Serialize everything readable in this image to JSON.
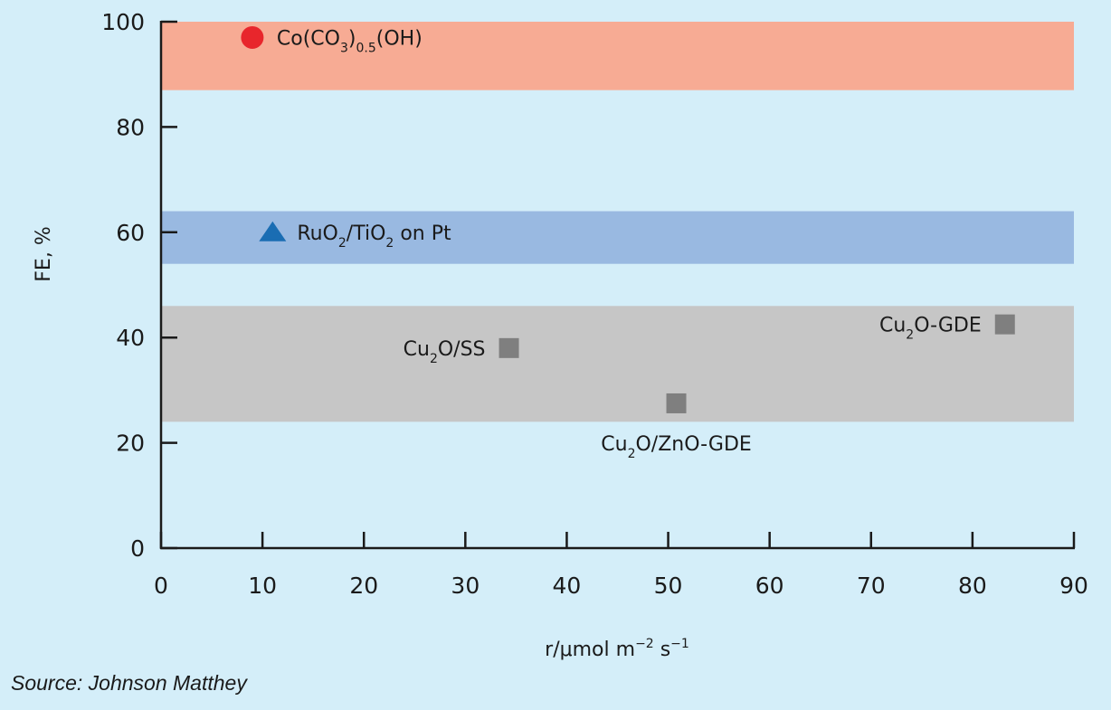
{
  "source": "Source: Johnson Matthey",
  "chart_data": {
    "type": "scatter",
    "xlabel": {
      "pre": "r/μmol m",
      "sup1": "−2",
      "mid": " s",
      "sup2": "−1"
    },
    "ylabel": "FE, %",
    "xlim": [
      0,
      90
    ],
    "ylim": [
      0,
      100
    ],
    "x_ticks": [
      "0",
      "10",
      "20",
      "30",
      "40",
      "50",
      "60",
      "70",
      "80",
      "90"
    ],
    "y_ticks": [
      "0",
      "20",
      "40",
      "60",
      "80",
      "100"
    ],
    "grid": false,
    "bands": [
      {
        "y_from": 87,
        "y_to": 100,
        "color": "#f7ab94"
      },
      {
        "y_from": 54,
        "y_to": 64,
        "color": "#99b9e1"
      },
      {
        "y_from": 24,
        "y_to": 46,
        "color": "#c6c6c6"
      }
    ],
    "points": [
      {
        "x": 9,
        "y": 97,
        "marker": "circle",
        "color": "#e8262c",
        "label": [
          {
            "t": "Co(CO"
          },
          {
            "t": "3",
            "sub": true
          },
          {
            "t": ")"
          },
          {
            "t": "0.5",
            "sub": true
          },
          {
            "t": "(OH)"
          }
        ],
        "label_side": "right"
      },
      {
        "x": 11,
        "y": 60,
        "marker": "triangle",
        "color": "#1a6db3",
        "label": [
          {
            "t": "RuO"
          },
          {
            "t": "2",
            "sub": true
          },
          {
            "t": "/TiO"
          },
          {
            "t": "2",
            "sub": true
          },
          {
            "t": " on Pt"
          }
        ],
        "label_side": "right"
      },
      {
        "x": 34.3,
        "y": 38,
        "marker": "square",
        "color": "#7f7f7f",
        "label": [
          {
            "t": "Cu"
          },
          {
            "t": "2",
            "sub": true
          },
          {
            "t": "O/SS"
          }
        ],
        "label_side": "left"
      },
      {
        "x": 50.8,
        "y": 27.5,
        "marker": "square",
        "color": "#7f7f7f",
        "label": [
          {
            "t": "Cu"
          },
          {
            "t": "2",
            "sub": true
          },
          {
            "t": "O/ZnO-GDE"
          }
        ],
        "label_side": "below"
      },
      {
        "x": 83.2,
        "y": 42.5,
        "marker": "square",
        "color": "#7f7f7f",
        "label": [
          {
            "t": "Cu"
          },
          {
            "t": "2",
            "sub": true
          },
          {
            "t": "O-GDE"
          }
        ],
        "label_side": "left"
      }
    ]
  }
}
